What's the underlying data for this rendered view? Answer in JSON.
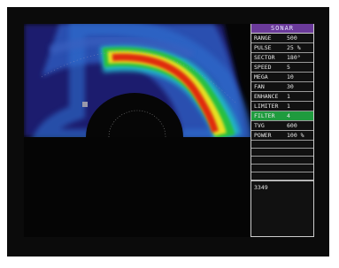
{
  "panel": {
    "title": "SONAR",
    "rows": [
      [
        "RANGE",
        "500"
      ],
      [
        "PULSE",
        "25 %"
      ],
      [
        "SECTOR",
        "180°"
      ],
      [
        "SPEED",
        "5"
      ],
      [
        "MEGA",
        "10"
      ],
      [
        "FAN",
        "30"
      ],
      [
        "ENHANCE",
        "1"
      ],
      [
        "LIMITER",
        "1"
      ],
      [
        "FILTER",
        "4"
      ],
      [
        "TVG",
        "600"
      ],
      [
        "POWER",
        "100 %"
      ]
    ],
    "readout": "3349"
  }
}
